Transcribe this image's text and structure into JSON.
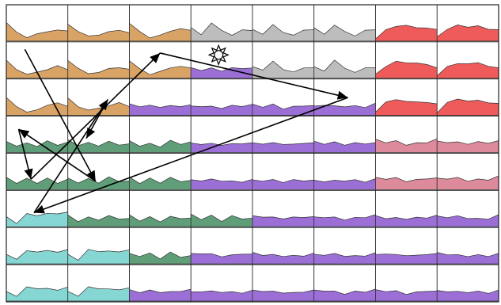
{
  "palette": {
    "tan": "#d9a366",
    "gray": "#bdbdbd",
    "purple": "#9b6fd6",
    "red": "#ef5b5b",
    "green": "#5f9e78",
    "pink": "#dc8a9c",
    "cyan": "#86d6d3",
    "border": "#222222",
    "arrow": "#000000"
  },
  "grid": {
    "rows": [
      [
        "tan",
        "tan",
        "tan",
        "gray",
        "gray",
        "gray",
        "red",
        "red"
      ],
      [
        "tan",
        "tan",
        "tan",
        "purple",
        "gray",
        "gray",
        "red",
        "red"
      ],
      [
        "tan",
        "tan",
        "purple",
        "purple",
        "purple",
        "purple",
        "red",
        "red"
      ],
      [
        "green",
        "green",
        "green",
        "purple",
        "purple",
        "purple",
        "pink",
        "pink"
      ],
      [
        "green",
        "green",
        "green",
        "purple",
        "purple",
        "purple",
        "pink",
        "pink"
      ],
      [
        "cyan",
        "green",
        "green",
        "green",
        "purple",
        "purple",
        "purple",
        "purple"
      ],
      [
        "cyan",
        "cyan",
        "green",
        "purple",
        "purple",
        "purple",
        "purple",
        "purple"
      ],
      [
        "cyan",
        "cyan",
        "purple",
        "purple",
        "purple",
        "purple",
        "purple",
        "purple"
      ]
    ]
  },
  "sparkline_profiles": {
    "tan": [
      0.85,
      0.45,
      0.2,
      0.3,
      0.45,
      0.55,
      0.45
    ],
    "gray": [
      0.6,
      0.35,
      0.8,
      0.45,
      0.3,
      0.55,
      0.5
    ],
    "red": [
      0.15,
      0.6,
      0.75,
      0.7,
      0.68,
      0.6,
      0.55
    ],
    "purple": [
      0.5,
      0.42,
      0.48,
      0.35,
      0.45,
      0.4,
      0.52
    ],
    "green": [
      0.55,
      0.3,
      0.5,
      0.25,
      0.55,
      0.35,
      0.45
    ],
    "pink": [
      0.6,
      0.45,
      0.55,
      0.4,
      0.5,
      0.45,
      0.6
    ],
    "cyan": [
      0.45,
      0.2,
      0.65,
      0.55,
      0.6,
      0.55,
      0.65
    ]
  },
  "arrows_sequence": [
    "r1c0",
    "r4c1",
    "r3c0",
    "r4c0",
    "r1c2",
    "r2c5",
    "r5c0",
    "r2c1",
    "r3c1"
  ],
  "highlight_marker": {
    "icon": "sun-icon",
    "cell": "r1c3"
  }
}
